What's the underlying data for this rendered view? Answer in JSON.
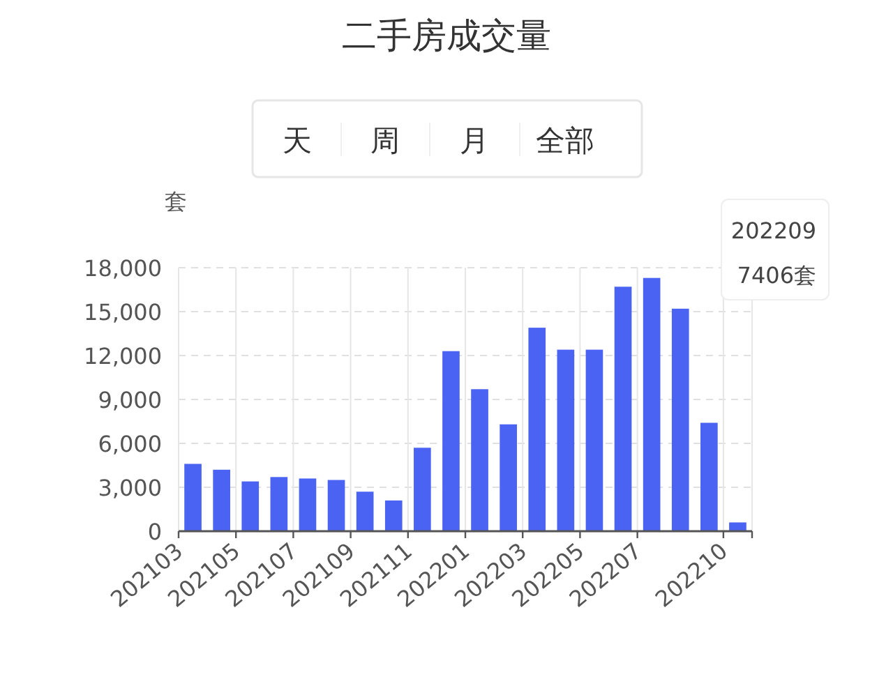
{
  "chart_data": {
    "type": "bar",
    "title": "二手房成交量",
    "ylabel": "套",
    "annotations": [
      "天",
      "周",
      "月",
      "全部",
      "202209",
      "7406套"
    ],
    "categories": [
      "202103",
      null,
      "202105",
      null,
      "202107",
      null,
      "202109",
      null,
      "202111",
      null,
      "202201",
      null,
      "202203",
      null,
      "202205",
      null,
      "202207",
      null,
      null,
      "202210"
    ],
    "values": [
      4600,
      4200,
      3400,
      3700,
      3600,
      3500,
      2700,
      2100,
      5700,
      12300,
      9700,
      7300,
      13900,
      12400,
      12400,
      16700,
      17300,
      15200,
      7406,
      600
    ],
    "color": "#4b63f2",
    "ylim": [
      0,
      18000
    ],
    "yticks": [
      0,
      {
        "value": 3000,
        "label": "3,000"
      },
      {
        "value": 6000,
        "label": "6,000"
      },
      {
        "value": 9000,
        "label": "9,000"
      },
      {
        "value": 12000,
        "label": "12,000"
      },
      {
        "value": 15000,
        "label": "15,000"
      },
      {
        "value": 18000,
        "label": "18,000"
      }
    ],
    "grid": true
  }
}
